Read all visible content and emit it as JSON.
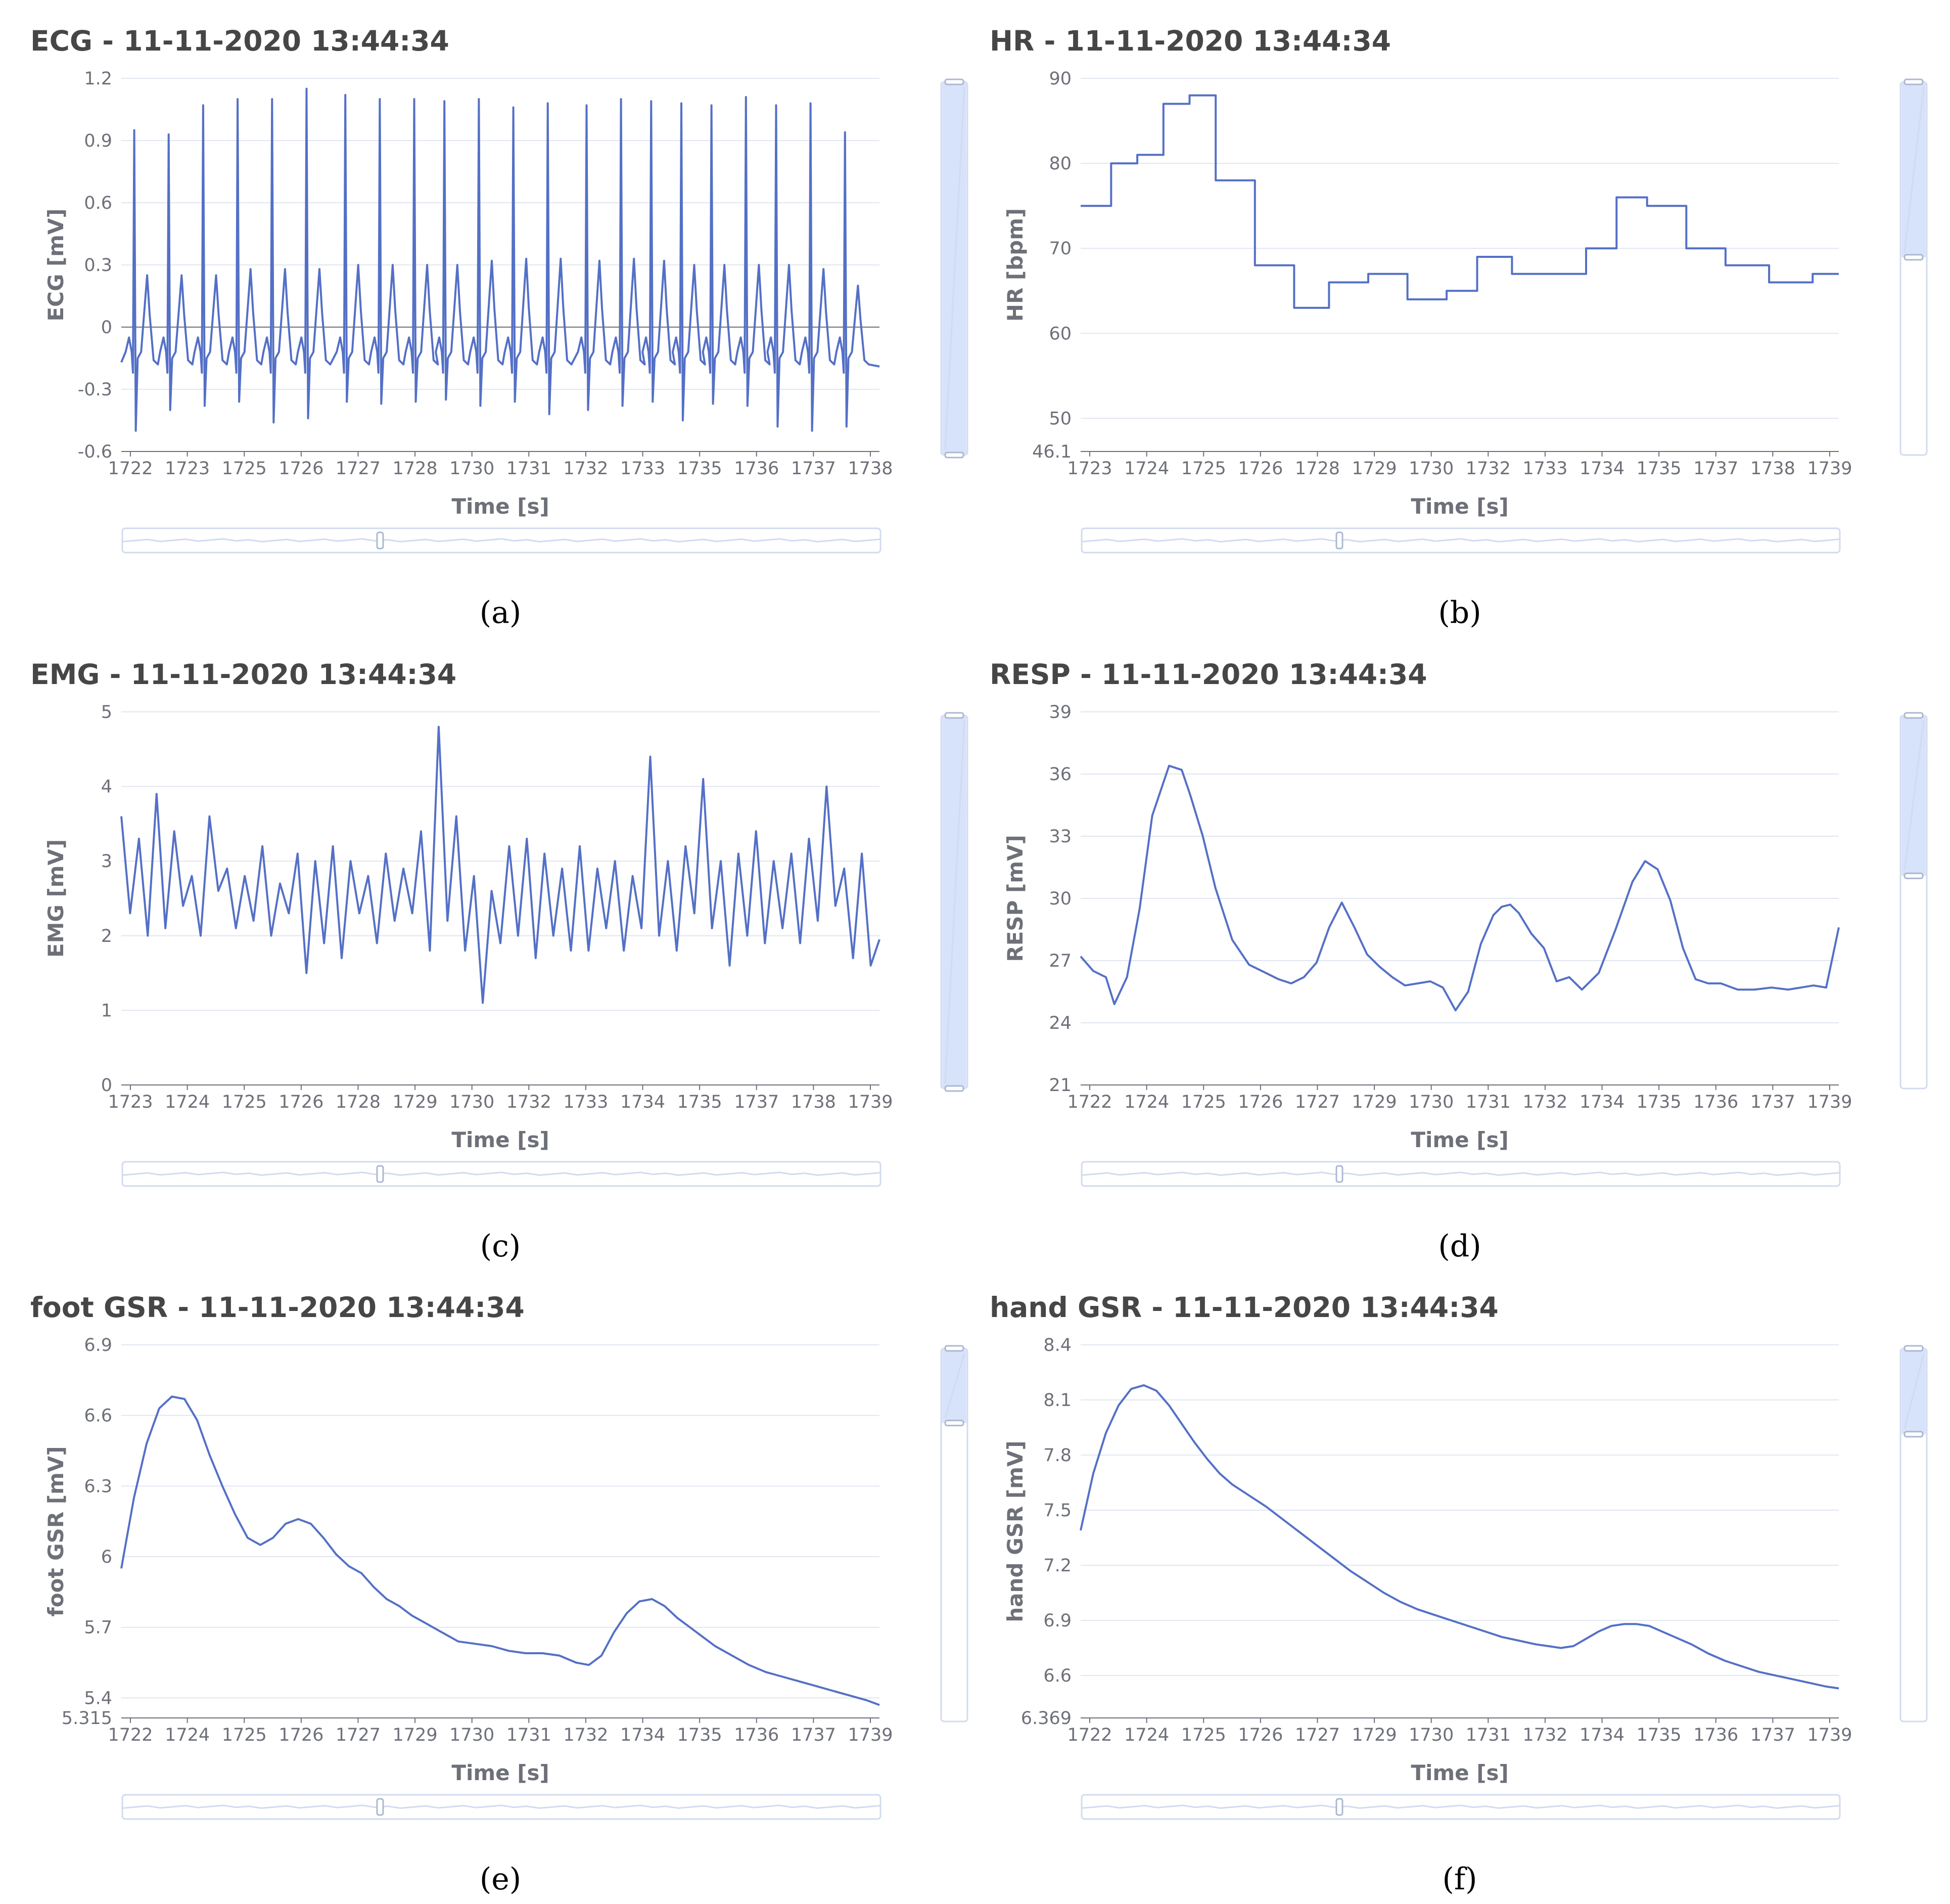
{
  "figure": {
    "panel_count": 6
  },
  "chart_data": [
    {
      "id": "a",
      "type": "line",
      "caption": "(a)",
      "title": "ECG - 11-11-2020 13:44:34",
      "xlabel": "Time [s]",
      "ylabel": "ECG [mV]",
      "xlim": [
        1721.9,
        1739.5
      ],
      "ylim": [
        -0.6,
        1.2
      ],
      "yticks": [
        -0.6,
        -0.3,
        0,
        0.3,
        0.6,
        0.9,
        1.2
      ],
      "ytick_labels": [
        "-0.6",
        "-0.3",
        "0",
        "0.3",
        "0.6",
        "0.9",
        "1.2"
      ],
      "xtick_labels": [
        "1722",
        "1723",
        "1725",
        "1726",
        "1727",
        "1728",
        "1730",
        "1731",
        "1732",
        "1733",
        "1735",
        "1736",
        "1737",
        "1738"
      ],
      "zero_line": true,
      "signal": "ecg",
      "beat_times": [
        1722.2,
        1723.0,
        1723.8,
        1724.6,
        1725.4,
        1726.2,
        1727.1,
        1727.9,
        1728.7,
        1729.4,
        1730.2,
        1731.0,
        1731.8,
        1732.7,
        1733.5,
        1734.2,
        1734.9,
        1735.6,
        1736.4,
        1737.1,
        1737.9,
        1738.7
      ],
      "r_peaks": [
        0.95,
        0.93,
        1.07,
        1.1,
        1.1,
        1.15,
        1.12,
        1.1,
        1.1,
        1.09,
        1.1,
        1.06,
        1.08,
        1.07,
        1.1,
        1.09,
        1.08,
        1.07,
        1.11,
        1.07,
        1.08,
        0.94
      ],
      "s_troughs": [
        -0.5,
        -0.4,
        -0.38,
        -0.36,
        -0.46,
        -0.44,
        -0.36,
        -0.37,
        -0.36,
        -0.35,
        -0.38,
        -0.36,
        -0.42,
        -0.4,
        -0.38,
        -0.36,
        -0.45,
        -0.37,
        -0.38,
        -0.48,
        -0.5,
        -0.48
      ],
      "t_waves": [
        0.25,
        0.25,
        0.25,
        0.28,
        0.28,
        0.28,
        0.3,
        0.3,
        0.3,
        0.3,
        0.32,
        0.33,
        0.33,
        0.32,
        0.33,
        0.32,
        0.3,
        0.3,
        0.3,
        0.3,
        0.28,
        0.2
      ],
      "baseline": -0.1,
      "start_value": -0.17,
      "end_value": -0.19,
      "zoom": {
        "v_start": 0.0,
        "v_end": 1.0,
        "h_handle": 0.34
      }
    },
    {
      "id": "b",
      "type": "step",
      "caption": "(b)",
      "title": "HR - 11-11-2020 13:44:34",
      "xlabel": "Time [s]",
      "ylabel": "HR [bpm]",
      "xlim": [
        1722.2,
        1739.6
      ],
      "ylim": [
        46.1,
        90
      ],
      "yticks": [
        46.1,
        50,
        60,
        70,
        80,
        90
      ],
      "ytick_labels": [
        "46.1",
        "50",
        "60",
        "70",
        "80",
        "90"
      ],
      "xtick_labels": [
        "1723",
        "1724",
        "1725",
        "1726",
        "1728",
        "1729",
        "1730",
        "1732",
        "1733",
        "1734",
        "1735",
        "1737",
        "1738",
        "1739"
      ],
      "steps_x": [
        1722.2,
        1722.9,
        1723.5,
        1724.1,
        1724.7,
        1725.3,
        1726.2,
        1727.1,
        1727.9,
        1728.8,
        1729.7,
        1730.6,
        1731.3,
        1732.1,
        1733.8,
        1734.5,
        1735.2,
        1736.1,
        1737.0,
        1738.0,
        1738.6,
        1739.0,
        1739.6
      ],
      "steps_y": [
        75,
        80,
        81,
        87,
        88,
        78,
        68,
        63,
        66,
        67,
        64,
        65,
        69,
        67,
        70,
        76,
        75,
        70,
        68,
        66,
        66,
        67
      ],
      "zoom": {
        "v_start": 0.0,
        "v_end": 0.47,
        "h_handle": 0.34
      }
    },
    {
      "id": "c",
      "type": "line",
      "caption": "(c)",
      "title": "EMG - 11-11-2020 13:44:34",
      "xlabel": "Time [s]",
      "ylabel": "EMG [mV]",
      "xlim": [
        1722.2,
        1739.4
      ],
      "ylim": [
        0,
        5
      ],
      "yticks": [
        0,
        1,
        2,
        3,
        4,
        5
      ],
      "ytick_labels": [
        "0",
        "1",
        "2",
        "3",
        "4",
        "5"
      ],
      "xtick_labels": [
        "1723",
        "1724",
        "1725",
        "1726",
        "1728",
        "1729",
        "1730",
        "1732",
        "1733",
        "1734",
        "1735",
        "1737",
        "1738",
        "1739"
      ],
      "x": [
        1722.2,
        1722.4,
        1722.6,
        1722.8,
        1723.0,
        1723.2,
        1723.4,
        1723.6,
        1723.8,
        1724.0,
        1724.2,
        1724.4,
        1724.6,
        1724.8,
        1725.0,
        1725.2,
        1725.4,
        1725.6,
        1725.8,
        1726.0,
        1726.2,
        1726.4,
        1726.6,
        1726.8,
        1727.0,
        1727.2,
        1727.4,
        1727.6,
        1727.8,
        1728.0,
        1728.2,
        1728.4,
        1728.6,
        1728.8,
        1729.0,
        1729.2,
        1729.4,
        1729.6,
        1729.8,
        1730.0,
        1730.2,
        1730.4,
        1730.6,
        1730.8,
        1731.0,
        1731.2,
        1731.4,
        1731.6,
        1731.8,
        1732.0,
        1732.2,
        1732.4,
        1732.6,
        1732.8,
        1733.0,
        1733.2,
        1733.4,
        1733.6,
        1733.8,
        1734.0,
        1734.2,
        1734.4,
        1734.6,
        1734.8,
        1735.0,
        1735.2,
        1735.4,
        1735.6,
        1735.8,
        1736.0,
        1736.2,
        1736.4,
        1736.6,
        1736.8,
        1737.0,
        1737.2,
        1737.4,
        1737.6,
        1737.8,
        1738.0,
        1738.2,
        1738.4,
        1738.6,
        1738.8,
        1739.0,
        1739.2,
        1739.4
      ],
      "values": [
        3.6,
        2.3,
        3.3,
        2.0,
        3.9,
        2.1,
        3.4,
        2.4,
        2.8,
        2.0,
        3.6,
        2.6,
        2.9,
        2.1,
        2.8,
        2.2,
        3.2,
        2.0,
        2.7,
        2.3,
        3.1,
        1.5,
        3.0,
        1.9,
        3.2,
        1.7,
        3.0,
        2.3,
        2.8,
        1.9,
        3.1,
        2.2,
        2.9,
        2.3,
        3.4,
        1.8,
        4.8,
        2.2,
        3.6,
        1.8,
        2.8,
        1.1,
        2.6,
        1.9,
        3.2,
        2.0,
        3.3,
        1.7,
        3.1,
        2.0,
        2.9,
        1.8,
        3.2,
        1.8,
        2.9,
        2.1,
        3.0,
        1.8,
        2.8,
        2.1,
        4.4,
        2.0,
        3.0,
        1.8,
        3.2,
        2.3,
        4.1,
        2.1,
        3.0,
        1.6,
        3.1,
        2.0,
        3.4,
        1.9,
        3.0,
        2.1,
        3.1,
        1.9,
        3.3,
        2.2,
        4.0,
        2.4,
        2.9,
        1.7,
        3.1,
        1.6,
        1.95
      ],
      "zoom": {
        "v_start": 0.0,
        "v_end": 1.0,
        "h_handle": 0.34
      }
    },
    {
      "id": "d",
      "type": "line",
      "caption": "(d)",
      "title": "RESP - 11-11-2020 13:44:34",
      "xlabel": "Time [s]",
      "ylabel": "RESP [mV]",
      "xlim": [
        1721.9,
        1739.9
      ],
      "ylim": [
        21,
        39
      ],
      "yticks": [
        21,
        24,
        27,
        30,
        33,
        36,
        39
      ],
      "ytick_labels": [
        "21",
        "24",
        "27",
        "30",
        "33",
        "36",
        "39"
      ],
      "xtick_labels": [
        "1722",
        "1724",
        "1725",
        "1726",
        "1727",
        "1729",
        "1730",
        "1731",
        "1732",
        "1734",
        "1735",
        "1736",
        "1737",
        "1739"
      ],
      "x": [
        1721.9,
        1722.2,
        1722.5,
        1722.7,
        1723.0,
        1723.3,
        1723.6,
        1724.0,
        1724.3,
        1724.5,
        1724.8,
        1725.1,
        1725.5,
        1725.9,
        1726.3,
        1726.6,
        1726.9,
        1727.2,
        1727.5,
        1727.8,
        1728.1,
        1728.4,
        1728.7,
        1729.0,
        1729.3,
        1729.6,
        1729.9,
        1730.2,
        1730.5,
        1730.8,
        1731.1,
        1731.4,
        1731.7,
        1731.9,
        1732.1,
        1732.3,
        1732.6,
        1732.9,
        1733.2,
        1733.5,
        1733.8,
        1734.2,
        1734.6,
        1735.0,
        1735.3,
        1735.6,
        1735.9,
        1736.2,
        1736.5,
        1736.8,
        1737.1,
        1737.5,
        1737.9,
        1738.3,
        1738.7,
        1739.0,
        1739.3,
        1739.6,
        1739.9
      ],
      "values": [
        27.2,
        26.5,
        26.2,
        24.9,
        26.2,
        29.5,
        34.0,
        36.4,
        36.2,
        35.0,
        33.0,
        30.5,
        28.0,
        26.8,
        26.4,
        26.1,
        25.9,
        26.2,
        26.9,
        28.6,
        29.8,
        28.6,
        27.3,
        26.7,
        26.2,
        25.8,
        25.9,
        26.0,
        25.7,
        24.6,
        25.5,
        27.8,
        29.2,
        29.6,
        29.7,
        29.3,
        28.3,
        27.6,
        26.0,
        26.2,
        25.6,
        26.4,
        28.5,
        30.8,
        31.8,
        31.4,
        29.9,
        27.6,
        26.1,
        25.9,
        25.9,
        25.6,
        25.6,
        25.7,
        25.6,
        25.7,
        25.8,
        25.7,
        28.6
      ],
      "zoom": {
        "v_start": 0.0,
        "v_end": 0.43,
        "h_handle": 0.34
      }
    },
    {
      "id": "e",
      "type": "line",
      "caption": "(e)",
      "title": "foot GSR - 11-11-2020 13:44:34",
      "xlabel": "Time [s]",
      "ylabel": "foot GSR [mV]",
      "xlim": [
        1721.9,
        1739.9
      ],
      "ylim": [
        5.315,
        6.9
      ],
      "yticks": [
        5.315,
        5.4,
        5.7,
        6,
        6.3,
        6.6,
        6.9
      ],
      "ytick_labels": [
        "5.315",
        "5.4",
        "5.7",
        "6",
        "6.3",
        "6.6",
        "6.9"
      ],
      "xtick_labels": [
        "1722",
        "1724",
        "1725",
        "1726",
        "1727",
        "1729",
        "1730",
        "1731",
        "1732",
        "1734",
        "1735",
        "1736",
        "1737",
        "1739"
      ],
      "x": [
        1721.9,
        1722.2,
        1722.5,
        1722.8,
        1723.1,
        1723.4,
        1723.7,
        1724.0,
        1724.3,
        1724.6,
        1724.9,
        1725.2,
        1725.5,
        1725.8,
        1726.1,
        1726.4,
        1726.7,
        1727.0,
        1727.3,
        1727.6,
        1727.9,
        1728.2,
        1728.5,
        1728.8,
        1729.1,
        1729.5,
        1729.9,
        1730.3,
        1730.7,
        1731.1,
        1731.5,
        1731.9,
        1732.3,
        1732.7,
        1733.0,
        1733.3,
        1733.6,
        1733.9,
        1734.2,
        1734.5,
        1734.8,
        1735.1,
        1735.4,
        1735.7,
        1736.0,
        1736.4,
        1736.8,
        1737.2,
        1737.6,
        1738.0,
        1738.4,
        1738.8,
        1739.2,
        1739.6,
        1739.9
      ],
      "values": [
        5.95,
        6.25,
        6.48,
        6.63,
        6.68,
        6.67,
        6.58,
        6.43,
        6.3,
        6.18,
        6.08,
        6.05,
        6.08,
        6.14,
        6.16,
        6.14,
        6.08,
        6.01,
        5.96,
        5.93,
        5.87,
        5.82,
        5.79,
        5.75,
        5.72,
        5.68,
        5.64,
        5.63,
        5.62,
        5.6,
        5.59,
        5.59,
        5.58,
        5.55,
        5.54,
        5.58,
        5.68,
        5.76,
        5.81,
        5.82,
        5.79,
        5.74,
        5.7,
        5.66,
        5.62,
        5.58,
        5.54,
        5.51,
        5.49,
        5.47,
        5.45,
        5.43,
        5.41,
        5.39,
        5.37
      ],
      "zoom": {
        "v_start": 0.0,
        "v_end": 0.2,
        "h_handle": 0.34
      }
    },
    {
      "id": "f",
      "type": "line",
      "caption": "(f)",
      "title": "hand GSR - 11-11-2020 13:44:34",
      "xlabel": "Time [s]",
      "ylabel": "hand GSR [mV]",
      "xlim": [
        1721.9,
        1739.9
      ],
      "ylim": [
        6.369,
        8.4
      ],
      "yticks": [
        6.369,
        6.6,
        6.9,
        7.2,
        7.5,
        7.8,
        8.1,
        8.4
      ],
      "ytick_labels": [
        "6.369",
        "6.6",
        "6.9",
        "7.2",
        "7.5",
        "7.8",
        "8.1",
        "8.4"
      ],
      "xtick_labels": [
        "1722",
        "1724",
        "1725",
        "1726",
        "1727",
        "1729",
        "1730",
        "1731",
        "1732",
        "1734",
        "1735",
        "1736",
        "1737",
        "1739"
      ],
      "x": [
        1721.9,
        1722.2,
        1722.5,
        1722.8,
        1723.1,
        1723.4,
        1723.7,
        1724.0,
        1724.3,
        1724.6,
        1724.9,
        1725.2,
        1725.5,
        1725.9,
        1726.3,
        1726.7,
        1727.1,
        1727.5,
        1727.9,
        1728.3,
        1728.7,
        1729.1,
        1729.5,
        1729.9,
        1730.3,
        1730.7,
        1731.1,
        1731.5,
        1731.9,
        1732.3,
        1732.7,
        1733.0,
        1733.3,
        1733.6,
        1733.9,
        1734.2,
        1734.5,
        1734.8,
        1735.1,
        1735.4,
        1735.7,
        1736.0,
        1736.4,
        1736.8,
        1737.2,
        1737.6,
        1738.0,
        1738.4,
        1738.8,
        1739.2,
        1739.6,
        1739.9
      ],
      "values": [
        7.39,
        7.7,
        7.92,
        8.07,
        8.16,
        8.18,
        8.15,
        8.07,
        7.97,
        7.87,
        7.78,
        7.7,
        7.64,
        7.58,
        7.52,
        7.45,
        7.38,
        7.31,
        7.24,
        7.17,
        7.11,
        7.05,
        7.0,
        6.96,
        6.93,
        6.9,
        6.87,
        6.84,
        6.81,
        6.79,
        6.77,
        6.76,
        6.75,
        6.76,
        6.8,
        6.84,
        6.87,
        6.88,
        6.88,
        6.87,
        6.84,
        6.81,
        6.77,
        6.72,
        6.68,
        6.65,
        6.62,
        6.6,
        6.58,
        6.56,
        6.54,
        6.53
      ],
      "zoom": {
        "v_start": 0.0,
        "v_end": 0.23,
        "h_handle": 0.34
      }
    }
  ]
}
